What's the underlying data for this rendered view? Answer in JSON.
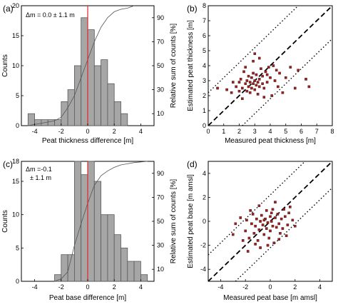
{
  "chart_data": [
    {
      "panel": "(a)",
      "type": "bar",
      "annotation_line1": "Δm = 0.0 ± 1.1 m",
      "xlabel": "Peat thickness difference [m]",
      "ylabel": "Counts",
      "y2label": "Relative sum of counts [%]",
      "xlim": [
        -5,
        5
      ],
      "ylim": [
        0,
        20
      ],
      "y2ticks": [
        10,
        30,
        50,
        70,
        90
      ],
      "xticks": [
        -4,
        -2,
        0,
        2,
        4
      ],
      "yticks": [
        0,
        5,
        10,
        15,
        20
      ],
      "bin_edges": [
        -4.5,
        -4.0,
        -3.5,
        -3.0,
        -2.5,
        -2.0,
        -1.5,
        -1.0,
        -0.5,
        0.0,
        0.5,
        1.0,
        1.5,
        2.0,
        2.5,
        3.0,
        3.5
      ],
      "values": [
        2,
        1,
        1,
        1,
        1,
        4,
        6,
        10,
        18,
        16,
        10,
        11,
        7,
        4,
        2,
        0
      ],
      "reference_line_x": 0,
      "cumulative": [
        [
          -4.5,
          0
        ],
        [
          -3.5,
          2
        ],
        [
          -2.5,
          4
        ],
        [
          -2,
          7
        ],
        [
          -1.5,
          15
        ],
        [
          -1,
          25
        ],
        [
          -0.5,
          40
        ],
        [
          0,
          55
        ],
        [
          0.5,
          70
        ],
        [
          1,
          82
        ],
        [
          1.5,
          90
        ],
        [
          2,
          95
        ],
        [
          2.5,
          97
        ],
        [
          3,
          98
        ],
        [
          3.5,
          100
        ]
      ],
      "cumulative_ylim": [
        0,
        100
      ]
    },
    {
      "panel": "(b)",
      "type": "scatter",
      "xlabel": "Measured peat thickness [m]",
      "ylabel": "Estimated peat thickness [m]",
      "xlim": [
        0,
        8
      ],
      "ylim": [
        0,
        8
      ],
      "xticks": [
        0,
        1,
        2,
        3,
        4,
        5,
        6,
        7,
        8
      ],
      "yticks": [
        0,
        1,
        2,
        3,
        4,
        5,
        6,
        7,
        8
      ],
      "one_to_one_offset": 2.2,
      "points": [
        [
          0.6,
          2.5
        ],
        [
          1.2,
          2.4
        ],
        [
          1.5,
          2.2
        ],
        [
          1.8,
          2.6
        ],
        [
          2.0,
          2.3
        ],
        [
          2.1,
          3.1
        ],
        [
          2.2,
          2.5
        ],
        [
          2.3,
          3.6
        ],
        [
          2.4,
          2.8
        ],
        [
          2.5,
          2.3
        ],
        [
          2.5,
          3.0
        ],
        [
          2.6,
          2.6
        ],
        [
          2.6,
          3.3
        ],
        [
          2.7,
          2.9
        ],
        [
          2.7,
          2.2
        ],
        [
          2.8,
          3.2
        ],
        [
          2.8,
          2.5
        ],
        [
          2.9,
          2.8
        ],
        [
          2.9,
          3.5
        ],
        [
          3.0,
          2.4
        ],
        [
          3.0,
          3.0
        ],
        [
          3.0,
          4.8
        ],
        [
          3.1,
          2.7
        ],
        [
          3.1,
          3.4
        ],
        [
          3.2,
          2.9
        ],
        [
          3.2,
          2.1
        ],
        [
          3.3,
          3.1
        ],
        [
          3.3,
          2.6
        ],
        [
          3.4,
          3.8
        ],
        [
          3.5,
          2.8
        ],
        [
          3.5,
          3.3
        ],
        [
          3.6,
          2.5
        ],
        [
          3.7,
          3.6
        ],
        [
          3.8,
          2.9
        ],
        [
          3.9,
          3.9
        ],
        [
          4.0,
          3.2
        ],
        [
          4.1,
          2.0
        ],
        [
          4.2,
          4.0
        ],
        [
          4.3,
          3.0
        ],
        [
          4.5,
          2.6
        ],
        [
          4.6,
          3.5
        ],
        [
          4.8,
          2.2
        ],
        [
          5.0,
          3.2
        ],
        [
          5.3,
          3.9
        ],
        [
          5.6,
          2.5
        ],
        [
          5.8,
          3.7
        ],
        [
          6.3,
          3.1
        ],
        [
          6.5,
          2.6
        ],
        [
          2.0,
          2.9
        ],
        [
          2.4,
          3.9
        ],
        [
          2.9,
          4.3
        ],
        [
          3.3,
          4.5
        ],
        [
          3.6,
          1.9
        ],
        [
          2.2,
          1.8
        ],
        [
          1.6,
          2.9
        ],
        [
          3.8,
          3.4
        ],
        [
          4.4,
          3.7
        ]
      ]
    },
    {
      "panel": "(c)",
      "type": "bar",
      "annotation_line1": "Δm =-0.1",
      "annotation_line2": "± 1.1 m",
      "xlabel": "Peat base difference [m]",
      "ylabel": "Counts",
      "y2label": "Relative sum of counts [%]",
      "xlim": [
        -5,
        5
      ],
      "ylim": [
        0,
        18
      ],
      "y2ticks": [
        10,
        30,
        50,
        70,
        90
      ],
      "xticks": [
        -4,
        -2,
        0,
        2,
        4
      ],
      "yticks": [
        0,
        5,
        10,
        15,
        18
      ],
      "bin_edges": [
        -2.5,
        -2.0,
        -1.5,
        -1.0,
        -0.5,
        0.0,
        0.5,
        1.0,
        1.5,
        2.0,
        2.5,
        3.0,
        3.5,
        4.0,
        4.5
      ],
      "values": [
        1,
        4,
        4,
        18,
        16,
        18,
        15,
        10,
        10,
        7,
        5,
        3,
        3,
        1
      ],
      "reference_line_x": 0,
      "cumulative": [
        [
          -2.5,
          0
        ],
        [
          -2,
          2
        ],
        [
          -1.5,
          8
        ],
        [
          -1,
          30
        ],
        [
          -0.5,
          48
        ],
        [
          0,
          65
        ],
        [
          0.5,
          80
        ],
        [
          1,
          88
        ],
        [
          1.5,
          92
        ],
        [
          2,
          95
        ],
        [
          2.5,
          97
        ],
        [
          3,
          98
        ],
        [
          3.5,
          99
        ],
        [
          4.5,
          100
        ]
      ],
      "cumulative_ylim": [
        0,
        100
      ]
    },
    {
      "panel": "(d)",
      "type": "scatter",
      "xlabel": "Measured peat base [m amsl]",
      "ylabel": "Estimated peat base [m amsl]",
      "xlim": [
        -5,
        5
      ],
      "ylim": [
        -5,
        5
      ],
      "xticks": [
        -4,
        -2,
        0,
        2,
        4
      ],
      "yticks": [
        -4,
        -2,
        0,
        2,
        4
      ],
      "one_to_one_offset": 2.2,
      "points": [
        [
          -2.8,
          -0.2
        ],
        [
          -2.4,
          0.3
        ],
        [
          -2.0,
          -0.8
        ],
        [
          -1.9,
          0.1
        ],
        [
          -1.7,
          -1.4
        ],
        [
          -1.5,
          -0.2
        ],
        [
          -1.4,
          0.6
        ],
        [
          -1.3,
          -1.0
        ],
        [
          -1.2,
          -0.4
        ],
        [
          -1.1,
          0.2
        ],
        [
          -1.0,
          -1.6
        ],
        [
          -0.9,
          -0.7
        ],
        [
          -0.8,
          0.0
        ],
        [
          -0.8,
          -2.2
        ],
        [
          -0.7,
          0.5
        ],
        [
          -0.6,
          -0.3
        ],
        [
          -0.5,
          -1.1
        ],
        [
          -0.4,
          0.2
        ],
        [
          -0.3,
          -0.6
        ],
        [
          -0.3,
          0.9
        ],
        [
          -0.2,
          -0.1
        ],
        [
          -0.1,
          -1.4
        ],
        [
          0.0,
          0.4
        ],
        [
          0.0,
          -0.8
        ],
        [
          0.1,
          0.0
        ],
        [
          0.2,
          -0.4
        ],
        [
          0.2,
          1.0
        ],
        [
          0.3,
          -1.8
        ],
        [
          0.4,
          0.3
        ],
        [
          0.5,
          -0.5
        ],
        [
          0.6,
          0.6
        ],
        [
          0.7,
          -0.2
        ],
        [
          0.8,
          -1.0
        ],
        [
          0.9,
          0.2
        ],
        [
          1.0,
          -0.6
        ],
        [
          1.2,
          0.4
        ],
        [
          1.4,
          -0.3
        ],
        [
          1.6,
          1.2
        ],
        [
          1.8,
          0.1
        ],
        [
          2.0,
          -0.4
        ],
        [
          1.5,
          0.7
        ],
        [
          -1.6,
          0.9
        ],
        [
          -0.9,
          1.3
        ],
        [
          0.4,
          1.6
        ],
        [
          1.1,
          1.0
        ],
        [
          -2.2,
          -1.6
        ],
        [
          -0.2,
          -2.0
        ],
        [
          0.7,
          -1.5
        ],
        [
          -1.8,
          -2.5
        ],
        [
          -0.5,
          0.1
        ],
        [
          0.1,
          0.7
        ],
        [
          1.3,
          -1.2
        ],
        [
          -3.0,
          -1.1
        ],
        [
          -1.2,
          -1.9
        ]
      ]
    }
  ],
  "colors": {
    "bar_fill": "#a6a6a6",
    "bar_stroke": "#595959",
    "reference_line": "#e52424",
    "point_fill": "#b01818",
    "point_stroke": "#222222",
    "axis": "#000000"
  }
}
